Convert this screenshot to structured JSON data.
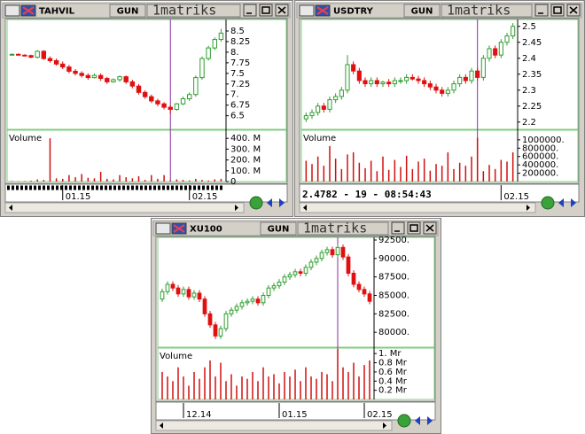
{
  "chart_data": [
    {
      "type": "candlestick",
      "title": "TAHVIL",
      "period": "GUN",
      "brand": "1matriks",
      "up_color": "#2e9e2e",
      "down_color": "#e01010",
      "categories": [
        null,
        null,
        null,
        null,
        null,
        null,
        null,
        null,
        "01.15",
        null,
        null,
        null,
        null,
        null,
        null,
        null,
        null,
        null,
        null,
        null,
        null,
        null,
        null,
        null,
        null,
        null,
        null,
        null,
        "02.15",
        null,
        null,
        null,
        null,
        null
      ],
      "open": [
        7.95,
        7.95,
        7.93,
        7.92,
        7.88,
        8.02,
        7.85,
        7.8,
        7.72,
        7.65,
        7.55,
        7.5,
        7.45,
        7.4,
        7.45,
        7.38,
        7.3,
        7.35,
        7.42,
        7.3,
        7.2,
        7.05,
        6.95,
        6.85,
        6.78,
        6.7,
        6.65,
        6.78,
        6.9,
        7.0,
        7.4,
        7.85,
        8.1,
        8.3
      ],
      "high": [
        7.97,
        7.97,
        7.95,
        7.94,
        8.05,
        8.05,
        7.9,
        7.85,
        7.78,
        7.7,
        7.6,
        7.55,
        7.5,
        7.5,
        7.5,
        7.42,
        7.38,
        7.45,
        7.45,
        7.35,
        7.25,
        7.1,
        7.0,
        6.9,
        6.82,
        6.75,
        6.8,
        6.95,
        7.05,
        7.45,
        7.9,
        8.15,
        8.35,
        8.55
      ],
      "low": [
        7.93,
        7.92,
        7.9,
        7.86,
        7.85,
        7.82,
        7.75,
        7.68,
        7.6,
        7.5,
        7.45,
        7.4,
        7.35,
        7.38,
        7.32,
        7.25,
        7.28,
        7.3,
        7.25,
        7.15,
        7.0,
        6.9,
        6.8,
        6.72,
        6.65,
        6.55,
        6.62,
        6.75,
        6.85,
        6.95,
        7.35,
        7.8,
        8.05,
        8.25
      ],
      "close": [
        7.95,
        7.93,
        7.92,
        7.88,
        8.02,
        7.85,
        7.8,
        7.72,
        7.65,
        7.55,
        7.5,
        7.45,
        7.4,
        7.45,
        7.38,
        7.3,
        7.35,
        7.42,
        7.3,
        7.2,
        7.05,
        6.95,
        6.85,
        6.78,
        6.7,
        6.65,
        6.78,
        6.9,
        7.0,
        7.4,
        7.85,
        8.1,
        8.3,
        8.45
      ],
      "ylim": [
        6.2,
        8.73
      ],
      "yticks": [
        6.5,
        6.75,
        {
          "value": 7,
          "label": "7."
        },
        7.25,
        7.5,
        7.75,
        {
          "value": 8,
          "label": "8."
        },
        8.25,
        8.5
      ],
      "volume": {
        "label": "Volume",
        "color": "#d01010",
        "values": [
          5,
          3,
          4,
          8,
          20,
          15,
          400,
          30,
          25,
          60,
          40,
          70,
          35,
          30,
          90,
          25,
          20,
          60,
          40,
          30,
          50,
          15,
          60,
          25,
          60,
          10,
          20,
          15,
          10,
          25,
          15,
          10,
          20,
          25
        ],
        "ylim": [
          0,
          467
        ],
        "yticks": [
          0,
          {
            "value": 100,
            "label": "100. M"
          },
          {
            "value": 200,
            "label": "200. M"
          },
          {
            "value": 300,
            "label": "300. M"
          },
          {
            "value": 400,
            "label": "400. M"
          }
        ]
      }
    },
    {
      "type": "candlestick",
      "title": "USDTRY",
      "period": "GUN",
      "brand": "1matriks",
      "up_color": "#2e9e2e",
      "down_color": "#e01010",
      "status": "2.4782 - 19 - 08:54:43",
      "categories": [
        null,
        null,
        null,
        null,
        null,
        null,
        null,
        null,
        null,
        null,
        null,
        null,
        null,
        null,
        null,
        null,
        null,
        null,
        null,
        null,
        null,
        null,
        null,
        null,
        null,
        null,
        null,
        null,
        null,
        null,
        null,
        null,
        null,
        "02.15",
        null,
        null
      ],
      "open": [
        2.21,
        2.22,
        2.23,
        2.25,
        2.24,
        2.27,
        2.28,
        2.3,
        2.38,
        2.36,
        2.33,
        2.32,
        2.33,
        2.32,
        2.325,
        2.32,
        2.33,
        2.33,
        2.34,
        2.335,
        2.33,
        2.32,
        2.31,
        2.3,
        2.29,
        2.3,
        2.32,
        2.34,
        2.33,
        2.36,
        2.34,
        2.4,
        2.43,
        2.41,
        2.45,
        2.47
      ],
      "high": [
        2.23,
        2.24,
        2.26,
        2.26,
        2.28,
        2.29,
        2.31,
        2.41,
        2.39,
        2.37,
        2.34,
        2.34,
        2.34,
        2.33,
        2.335,
        2.34,
        2.34,
        2.35,
        2.35,
        2.345,
        2.34,
        2.33,
        2.32,
        2.31,
        2.31,
        2.33,
        2.35,
        2.35,
        2.37,
        2.37,
        2.41,
        2.44,
        2.44,
        2.46,
        2.48,
        2.51
      ],
      "low": [
        2.2,
        2.21,
        2.22,
        2.23,
        2.23,
        2.26,
        2.27,
        2.29,
        2.35,
        2.32,
        2.31,
        2.31,
        2.31,
        2.31,
        2.31,
        2.31,
        2.32,
        2.32,
        2.33,
        2.32,
        2.31,
        2.3,
        2.29,
        2.28,
        2.28,
        2.29,
        2.31,
        2.32,
        2.32,
        2.33,
        2.33,
        2.39,
        2.4,
        2.4,
        2.44,
        2.46
      ],
      "close": [
        2.22,
        2.23,
        2.25,
        2.24,
        2.27,
        2.28,
        2.3,
        2.38,
        2.36,
        2.33,
        2.32,
        2.33,
        2.32,
        2.325,
        2.32,
        2.33,
        2.33,
        2.34,
        2.335,
        2.33,
        2.32,
        2.31,
        2.3,
        2.29,
        2.3,
        2.32,
        2.34,
        2.33,
        2.36,
        2.34,
        2.4,
        2.43,
        2.41,
        2.45,
        2.47,
        2.5
      ],
      "ylim": [
        2.18,
        2.516
      ],
      "yticks": [
        2.2,
        2.25,
        2.3,
        2.35,
        2.4,
        2.45,
        2.5
      ],
      "volume": {
        "label": "Volume",
        "color": "#d01010",
        "values": [
          500000,
          420000,
          600000,
          380000,
          850000,
          550000,
          300000,
          650000,
          700000,
          450000,
          320000,
          500000,
          250000,
          600000,
          280000,
          520000,
          350000,
          620000,
          300000,
          480000,
          550000,
          260000,
          420000,
          380000,
          700000,
          300000,
          450000,
          380000,
          600000,
          1050000,
          250000,
          400000,
          300000,
          520000,
          480000,
          700000
        ],
        "ylim": [
          0,
          1210000
        ],
        "yticks": [
          {
            "value": 200000,
            "label": "200000."
          },
          {
            "value": 400000,
            "label": "400000."
          },
          {
            "value": 600000,
            "label": "600000."
          },
          {
            "value": 800000,
            "label": "800000."
          },
          {
            "value": 1000000,
            "label": "1000000."
          }
        ]
      }
    },
    {
      "type": "candlestick",
      "title": "XU100",
      "period": "GUN",
      "brand": "1matriks",
      "up_color": "#2e9e2e",
      "down_color": "#e01010",
      "categories": [
        null,
        null,
        null,
        null,
        "12.14",
        null,
        null,
        null,
        null,
        null,
        null,
        null,
        null,
        null,
        null,
        null,
        null,
        null,
        null,
        null,
        null,
        null,
        "01.15",
        null,
        null,
        null,
        null,
        null,
        null,
        null,
        null,
        null,
        null,
        null,
        null,
        null,
        null,
        null,
        "02.15",
        null
      ],
      "open": [
        84500,
        85500,
        86500,
        86000,
        85200,
        85800,
        84800,
        85300,
        84500,
        82500,
        81000,
        79500,
        80500,
        82500,
        83000,
        83500,
        84000,
        84200,
        84500,
        84000,
        85000,
        86000,
        86300,
        86800,
        87500,
        87800,
        88200,
        88000,
        88800,
        89500,
        90000,
        90800,
        91200,
        90500,
        91500,
        90200,
        88000,
        86500,
        85800,
        85200
      ],
      "high": [
        85900,
        86900,
        86900,
        86400,
        86200,
        86200,
        85700,
        85700,
        84900,
        82900,
        81400,
        80900,
        82900,
        83400,
        83900,
        84400,
        84600,
        84900,
        84900,
        85400,
        86400,
        86700,
        87200,
        87900,
        88200,
        88600,
        88600,
        89200,
        89900,
        90400,
        91200,
        91600,
        91600,
        91900,
        91900,
        90600,
        88400,
        86900,
        86200,
        85600
      ],
      "low": [
        84100,
        85100,
        85600,
        84800,
        84800,
        84400,
        84400,
        84100,
        82100,
        80600,
        79100,
        79100,
        80100,
        82100,
        82600,
        83100,
        83600,
        83800,
        83600,
        83600,
        84600,
        85600,
        85900,
        86400,
        87100,
        87400,
        87600,
        87600,
        88400,
        89100,
        89600,
        90400,
        90100,
        90100,
        89800,
        87600,
        86100,
        85400,
        84800,
        83800
      ],
      "close": [
        85500,
        86500,
        86000,
        85200,
        85800,
        84800,
        85300,
        84500,
        82500,
        81000,
        79500,
        80500,
        82500,
        83000,
        83500,
        84000,
        84200,
        84500,
        84000,
        85000,
        86000,
        86300,
        86800,
        87500,
        87800,
        88200,
        88000,
        88800,
        89500,
        90000,
        90800,
        91200,
        90500,
        91500,
        90200,
        88000,
        86500,
        85800,
        85200,
        84200
      ],
      "ylim": [
        78100,
        92620
      ],
      "yticks": [
        {
          "value": 80000,
          "label": "80000."
        },
        {
          "value": 82500,
          "label": "82500."
        },
        {
          "value": 85000,
          "label": "85000."
        },
        {
          "value": 87500,
          "label": "87500."
        },
        {
          "value": 90000,
          "label": "90000."
        },
        {
          "value": 92500,
          "label": "92500."
        }
      ],
      "volume": {
        "label": "Volume",
        "color": "#d01010",
        "values": [
          0.6,
          0.5,
          0.4,
          0.7,
          0.5,
          0.3,
          0.6,
          0.45,
          0.7,
          0.85,
          0.5,
          0.8,
          0.4,
          0.55,
          0.3,
          0.5,
          0.45,
          0.6,
          0.4,
          0.7,
          0.5,
          0.55,
          0.35,
          0.6,
          0.5,
          0.65,
          0.4,
          0.7,
          0.5,
          0.45,
          0.6,
          0.55,
          0.4,
          1.1,
          0.7,
          0.6,
          0.8,
          0.5,
          0.75,
          0.85
        ],
        "ylim": [
          0,
          1.1
        ],
        "yticks": [
          {
            "value": 0.2,
            "label": "0.2 Mr"
          },
          {
            "value": 0.4,
            "label": "0.4 Mr"
          },
          {
            "value": 0.6,
            "label": "0.6 Mr"
          },
          {
            "value": 0.8,
            "label": "0.8 Mr"
          },
          {
            "value": 1,
            "label": "1. Mr"
          }
        ]
      }
    }
  ]
}
